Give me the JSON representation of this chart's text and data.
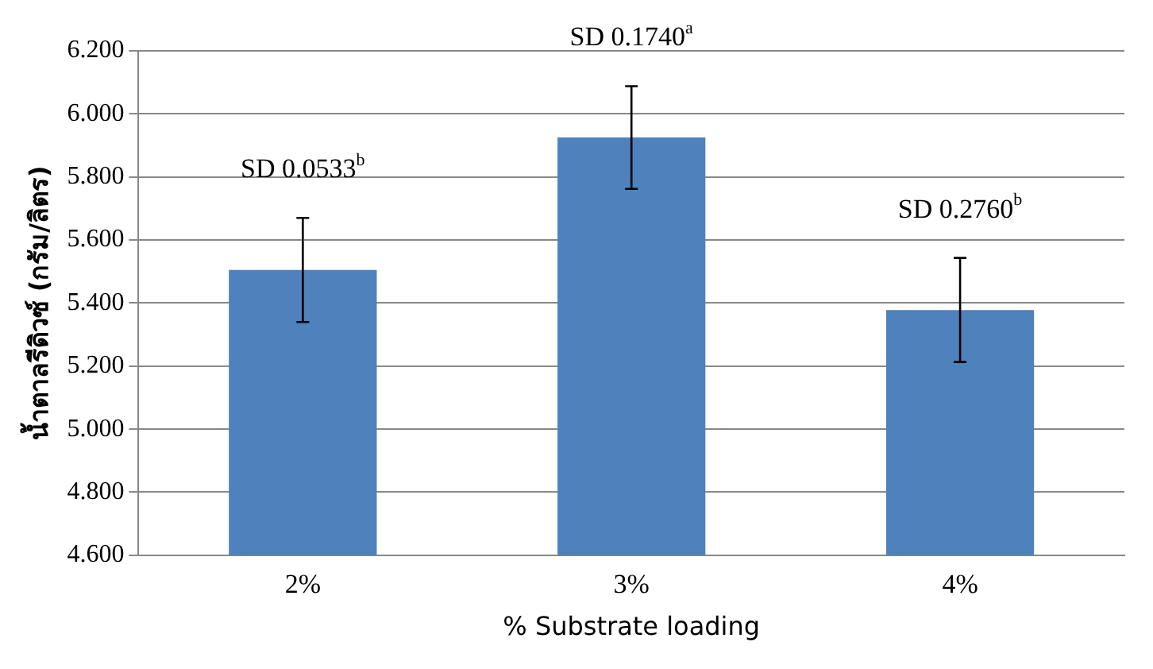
{
  "chart_data": {
    "type": "bar",
    "xlabel": "% Substrate loading",
    "ylabel": "น้ำตาลรีดิวซ์ (กรัม/ลิตร)",
    "categories": [
      "2%",
      "3%",
      "4%"
    ],
    "values": [
      5.505,
      5.925,
      5.378
    ],
    "errors": [
      0.165,
      0.163,
      0.165
    ],
    "color": "#4f81bd",
    "ylim": [
      4.6,
      6.2
    ],
    "yticks": [
      {
        "value": 4.6,
        "label": "4.600"
      },
      {
        "value": 4.8,
        "label": "4.800"
      },
      {
        "value": 5.0,
        "label": "5.000"
      },
      {
        "value": 5.2,
        "label": "5.200"
      },
      {
        "value": 5.4,
        "label": "5.400"
      },
      {
        "value": 5.6,
        "label": "5.600"
      },
      {
        "value": 5.8,
        "label": "5.800"
      },
      {
        "value": 6.0,
        "label": "6.000"
      },
      {
        "value": 6.2,
        "label": "6.200"
      }
    ],
    "grid": "y",
    "legend": false,
    "annotations": [
      "SD 0.0533$^{b}$",
      "SD 0.1740$^{a}$",
      "SD 0.2760$^{b}$"
    ]
  }
}
